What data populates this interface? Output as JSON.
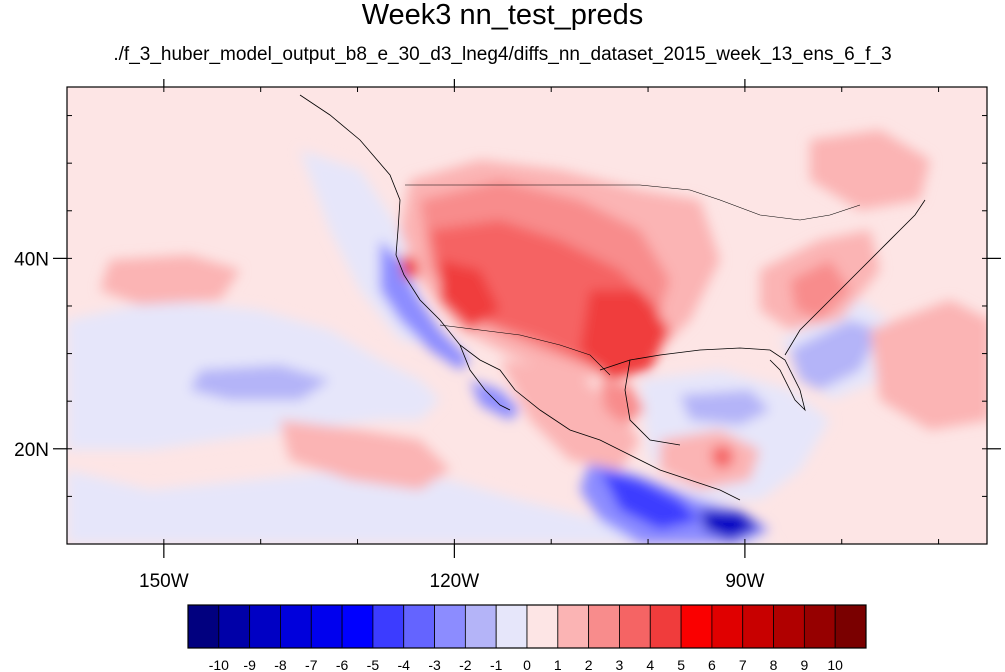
{
  "title": "Week3 nn_test_preds",
  "subtitle": "./f_3_huber_model_output_b8_e_30_d3_lneg4/diffs_nn_dataset_2015_week_13_ens_6_f_3",
  "map": {
    "lon_range": [
      -160,
      -65
    ],
    "lat_range": [
      10,
      58
    ],
    "lon_ticks": [
      {
        "value": -150,
        "label": "150W"
      },
      {
        "value": -120,
        "label": "120W"
      },
      {
        "value": -90,
        "label": "90W"
      }
    ],
    "lat_ticks": [
      {
        "value": 40,
        "label": "40N"
      },
      {
        "value": 20,
        "label": "20N"
      }
    ],
    "base_color": "#fde5e5"
  },
  "colorbar": {
    "levels": [
      "-10",
      "-9",
      "-8",
      "-7",
      "-6",
      "-5",
      "-4",
      "-3",
      "-2",
      "-1",
      "0",
      "1",
      "2",
      "3",
      "4",
      "5",
      "6",
      "7",
      "8",
      "9",
      "10"
    ],
    "colors": [
      "#01007f",
      "#0000a8",
      "#0000c4",
      "#0000dc",
      "#0000ee",
      "#0000ff",
      "#3c3cff",
      "#6464ff",
      "#8c8cff",
      "#b4b4f8",
      "#e6e6fa",
      "#fde5e5",
      "#fbb4b4",
      "#f88c8c",
      "#f56464",
      "#f03c3c",
      "#fa0000",
      "#e00000",
      "#c80000",
      "#b00000",
      "#960000",
      "#7a0000"
    ]
  }
}
